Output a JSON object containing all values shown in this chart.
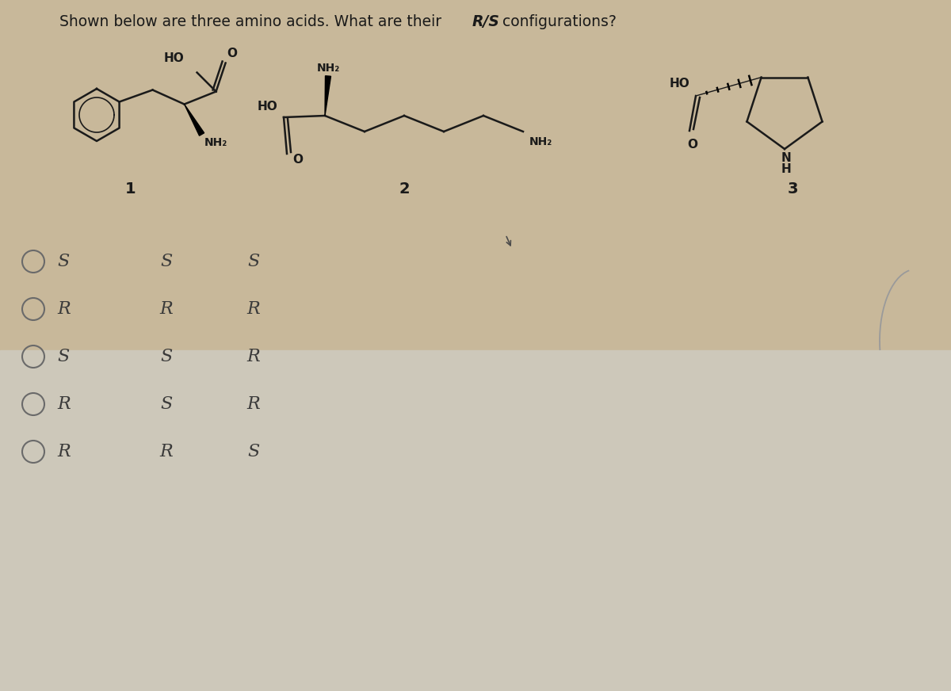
{
  "title_part1": "Shown below are three amino acids. What are their ",
  "title_rs": "R/S",
  "title_part2": " configurations?",
  "title_fontsize": 13.5,
  "bg_upper": "#c8b89a",
  "bg_lower": "#cdc8ba",
  "text_color": "#1a1a1a",
  "circle_color": "#6a6a6a",
  "mol_line_color": "#1a1a1a",
  "options": [
    [
      "S",
      "S",
      "S"
    ],
    [
      "R",
      "R",
      "R"
    ],
    [
      "S",
      "S",
      "R"
    ],
    [
      "R",
      "S",
      "R"
    ],
    [
      "R",
      "R",
      "S"
    ]
  ],
  "mol_labels": [
    "1",
    "2",
    "3"
  ],
  "mol_label_fontsize": 14,
  "option_fontsize": 16,
  "lw": 1.8
}
